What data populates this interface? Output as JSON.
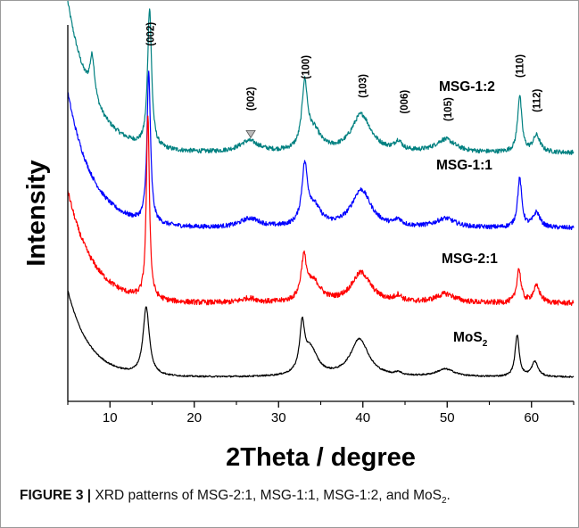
{
  "chart_data": {
    "type": "line",
    "xlabel": "2Theta / degree",
    "ylabel": "Intensity",
    "xlim": [
      5,
      65
    ],
    "xticks": [
      10,
      20,
      30,
      40,
      50,
      60
    ],
    "yticks": [],
    "grid": false,
    "series": [
      {
        "name": "MSG-1:2",
        "color": "#008080",
        "baseline": 3.3,
        "start": 2.0,
        "decay": 3.0,
        "noise": 0.03,
        "peaks": [
          [
            7.9,
            0.55,
            0.35
          ],
          [
            14.7,
            1.85,
            0.28
          ],
          [
            26.5,
            0.15,
            1.4
          ],
          [
            33.1,
            0.85,
            0.4
          ],
          [
            34.2,
            0.25,
            1.0
          ],
          [
            39.8,
            0.5,
            1.4
          ],
          [
            44.2,
            0.12,
            0.5
          ],
          [
            49.8,
            0.17,
            1.4
          ],
          [
            58.6,
            0.75,
            0.3
          ],
          [
            60.6,
            0.22,
            0.5
          ]
        ]
      },
      {
        "name": "MSG-1:1",
        "color": "#0000ff",
        "baseline": 2.3,
        "start": 1.8,
        "decay": 3.0,
        "noise": 0.03,
        "peaks": [
          [
            14.6,
            2.0,
            0.25
          ],
          [
            26.6,
            0.12,
            1.4
          ],
          [
            33.1,
            0.75,
            0.4
          ],
          [
            34.2,
            0.25,
            1.0
          ],
          [
            39.8,
            0.5,
            1.4
          ],
          [
            44.2,
            0.08,
            0.5
          ],
          [
            49.8,
            0.12,
            1.4
          ],
          [
            58.6,
            0.65,
            0.3
          ],
          [
            60.6,
            0.2,
            0.5
          ]
        ]
      },
      {
        "name": "MSG-2:1",
        "color": "#ff0000",
        "baseline": 1.3,
        "start": 1.5,
        "decay": 3.0,
        "noise": 0.035,
        "peaks": [
          [
            14.5,
            2.45,
            0.22
          ],
          [
            26.5,
            0.06,
            1.2
          ],
          [
            33.0,
            0.55,
            0.4
          ],
          [
            34.2,
            0.25,
            1.0
          ],
          [
            39.8,
            0.4,
            1.4
          ],
          [
            44.2,
            0.08,
            0.5
          ],
          [
            49.8,
            0.12,
            1.4
          ],
          [
            58.5,
            0.45,
            0.3
          ],
          [
            60.6,
            0.22,
            0.5
          ]
        ]
      },
      {
        "name": "MoS2",
        "color": "#000000",
        "baseline": 0.32,
        "start": 1.15,
        "decay": 2.6,
        "noise": 0.01,
        "peaks": [
          [
            14.3,
            0.9,
            0.45
          ],
          [
            32.8,
            0.6,
            0.35
          ],
          [
            33.8,
            0.35,
            1.0
          ],
          [
            39.6,
            0.5,
            1.3
          ],
          [
            44.2,
            0.04,
            0.4
          ],
          [
            49.8,
            0.1,
            1.3
          ],
          [
            58.3,
            0.55,
            0.3
          ],
          [
            60.4,
            0.2,
            0.45
          ]
        ]
      }
    ],
    "series_labels": [
      "MSG-1:2",
      "MSG-1:1",
      "MSG-2:1",
      "MoS"
    ],
    "series_label_sub": "2",
    "peak_labels": [
      {
        "x": 14.8,
        "y": 4.72,
        "text": "(002)"
      },
      {
        "x": 26.7,
        "y": 3.86,
        "text": "(002)"
      },
      {
        "x": 33.2,
        "y": 4.28,
        "text": "(100)"
      },
      {
        "x": 40.0,
        "y": 4.03,
        "text": "(103)"
      },
      {
        "x": 44.9,
        "y": 3.82,
        "text": "(006)"
      },
      {
        "x": 50.1,
        "y": 3.72,
        "text": "(105)"
      },
      {
        "x": 58.6,
        "y": 4.3,
        "text": "(110)"
      },
      {
        "x": 60.6,
        "y": 3.84,
        "text": "(112)"
      }
    ],
    "ylim": [
      0,
      5.0
    ]
  },
  "caption": {
    "label": "FIGURE 3 |",
    "text": " XRD patterns of MSG-2:1, MSG-1:1, MSG-1:2, and MoS",
    "sub": "2",
    "end": "."
  }
}
